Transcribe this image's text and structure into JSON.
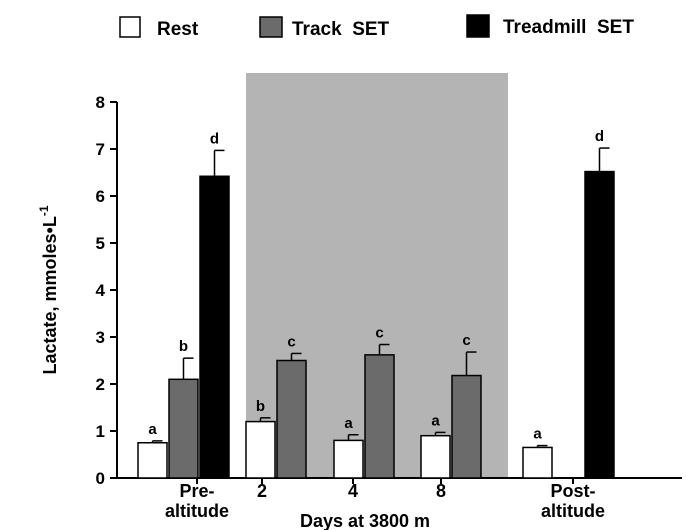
{
  "chart_data": {
    "type": "bar",
    "title": "",
    "xlabel": "Days at 3800 m",
    "ylabel": "Lactate, mmoles•L",
    "ylabel_superscript": "-1",
    "ylim": [
      0,
      8
    ],
    "yticks": [
      "0",
      "1",
      "2",
      "3",
      "4",
      "5",
      "6",
      "7",
      "8"
    ],
    "categories": [
      "Pre-\naltitude",
      "2",
      "4",
      "8",
      "Post-\naltitude"
    ],
    "shaded_region": {
      "from_category": 1,
      "to_category": 3
    },
    "legend": "top",
    "series": [
      {
        "name": "Rest",
        "color": "#ffffff",
        "values": [
          0.75,
          1.2,
          0.8,
          0.9,
          0.65
        ],
        "errors": [
          0.04,
          0.08,
          0.12,
          0.07,
          0.04
        ],
        "labels": [
          "a",
          "b",
          "a",
          "a",
          "a"
        ]
      },
      {
        "name": "Track  SET",
        "color": "#6b6b6b",
        "values": [
          2.1,
          2.5,
          2.62,
          2.18,
          null
        ],
        "errors": [
          0.45,
          0.15,
          0.22,
          0.5,
          null
        ],
        "labels": [
          "b",
          "c",
          "c",
          "c",
          null
        ]
      },
      {
        "name": "Treadmill  SET",
        "color": "#000000",
        "values": [
          6.42,
          null,
          null,
          null,
          6.52
        ],
        "errors": [
          0.55,
          null,
          null,
          null,
          0.5
        ],
        "labels": [
          "d",
          null,
          null,
          null,
          "d"
        ]
      }
    ]
  }
}
